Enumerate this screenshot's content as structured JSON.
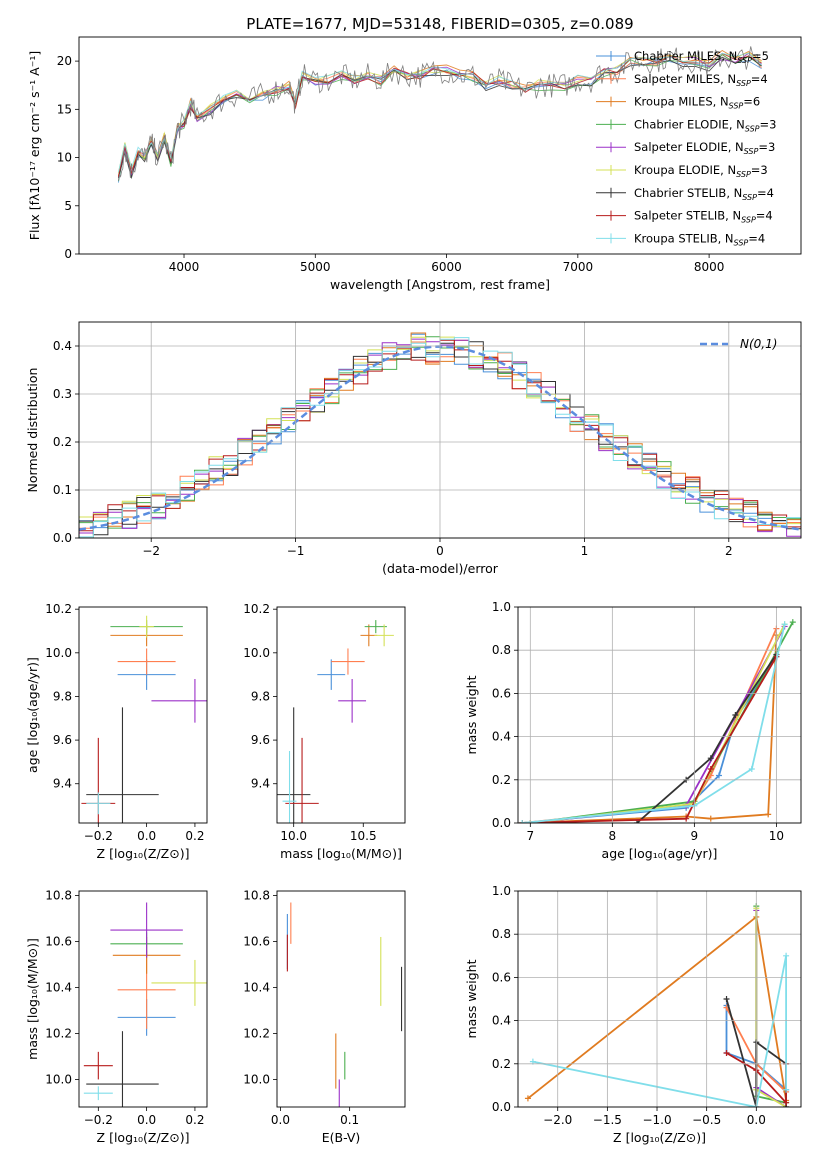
{
  "figure": {
    "title": "PLATE=1677, MJD=53148, FIBERID=0305, z=0.089"
  },
  "series": [
    {
      "name": "Chabrier MILES, N",
      "sub": "SSP",
      "suffix": "=5",
      "color": "#4a90d9"
    },
    {
      "name": "Salpeter MILES, N",
      "sub": "SSP",
      "suffix": "=4",
      "color": "#ff7f50"
    },
    {
      "name": "Kroupa MILES, N",
      "sub": "SSP",
      "suffix": "=6",
      "color": "#e07b20"
    },
    {
      "name": "Chabrier ELODIE, N",
      "sub": "SSP",
      "suffix": "=3",
      "color": "#4caf50"
    },
    {
      "name": "Salpeter ELODIE, N",
      "sub": "SSP",
      "suffix": "=3",
      "color": "#9b30c8"
    },
    {
      "name": "Kroupa ELODIE, N",
      "sub": "SSP",
      "suffix": "=3",
      "color": "#d4e157"
    },
    {
      "name": "Chabrier STELIB, N",
      "sub": "SSP",
      "suffix": "=4",
      "color": "#333333"
    },
    {
      "name": "Salpeter STELIB, N",
      "sub": "SSP",
      "suffix": "=4",
      "color": "#b71c1c"
    },
    {
      "name": "Kroupa STELIB, N",
      "sub": "SSP",
      "suffix": "=4",
      "color": "#80deea"
    }
  ],
  "chart_data": [
    {
      "id": "spectrum",
      "type": "line",
      "xlabel": "wavelength [Angstrom, rest frame]",
      "ylabel": "Flux [fλ10⁻¹⁷ erg cm⁻² s⁻¹ A⁻¹]",
      "xlim": [
        3200,
        8700
      ],
      "ylim": [
        0,
        22.5
      ],
      "xticks": [
        4000,
        5000,
        6000,
        7000,
        8000
      ],
      "yticks": [
        0,
        5,
        10,
        15,
        20
      ],
      "data_series": {
        "name": "data",
        "color": "#7f7f7f",
        "x": [
          3500,
          3550,
          3600,
          3650,
          3700,
          3750,
          3800,
          3850,
          3900,
          3950,
          4000,
          4050,
          4100,
          4200,
          4300,
          4400,
          4500,
          4600,
          4700,
          4800,
          4850,
          4900,
          5000,
          5100,
          5200,
          5300,
          5400,
          5500,
          5600,
          5700,
          5800,
          5900,
          6000,
          6100,
          6200,
          6300,
          6400,
          6500,
          6600,
          6700,
          6800,
          6900,
          7000,
          7100,
          7200,
          7300,
          7400,
          7500,
          7600,
          7700,
          7800,
          7900,
          8000,
          8100,
          8200,
          8300,
          8400
        ],
        "y": [
          8.0,
          11.0,
          8.5,
          10.5,
          10.0,
          11.5,
          10.0,
          12.0,
          9.5,
          13.0,
          13.5,
          15.5,
          14.0,
          15.0,
          16.0,
          16.5,
          16.0,
          16.5,
          17.0,
          17.5,
          15.5,
          18.5,
          18.0,
          18.0,
          18.5,
          18.0,
          18.5,
          18.0,
          19.0,
          18.5,
          18.5,
          19.0,
          19.0,
          18.5,
          18.5,
          17.5,
          18.0,
          17.5,
          17.0,
          17.5,
          17.5,
          17.5,
          18.0,
          18.0,
          19.0,
          19.0,
          20.0,
          20.0,
          20.0,
          20.5,
          20.0,
          20.0,
          19.5,
          20.5,
          20.0,
          20.5,
          19.5
        ]
      }
    },
    {
      "id": "residuals",
      "type": "step",
      "xlabel": "(data-model)/error",
      "ylabel": "Normed distribution",
      "xlim": [
        -2.5,
        2.5
      ],
      "ylim": [
        0,
        0.45
      ],
      "xticks": [
        -2,
        -1,
        0,
        1,
        2
      ],
      "yticks": [
        0.0,
        0.1,
        0.2,
        0.3,
        0.4
      ],
      "grid": true,
      "legend": "top-right",
      "reference": {
        "name": "N(0,1)",
        "color": "#5b8ddf",
        "mean": 0,
        "sigma": 1
      },
      "bin_centers": [
        -2.45,
        -2.35,
        -2.25,
        -2.15,
        -2.05,
        -1.95,
        -1.85,
        -1.75,
        -1.65,
        -1.55,
        -1.45,
        -1.35,
        -1.25,
        -1.15,
        -1.05,
        -0.95,
        -0.85,
        -0.75,
        -0.65,
        -0.55,
        -0.45,
        -0.35,
        -0.25,
        -0.15,
        -0.05,
        0.05,
        0.15,
        0.25,
        0.35,
        0.45,
        0.55,
        0.65,
        0.75,
        0.85,
        0.95,
        1.05,
        1.15,
        1.25,
        1.35,
        1.45,
        1.55,
        1.65,
        1.75,
        1.85,
        1.95,
        2.05,
        2.15,
        2.25,
        2.35,
        2.45
      ],
      "base_values": [
        0.02,
        0.03,
        0.04,
        0.05,
        0.06,
        0.07,
        0.08,
        0.1,
        0.12,
        0.14,
        0.16,
        0.18,
        0.2,
        0.22,
        0.25,
        0.27,
        0.29,
        0.31,
        0.33,
        0.35,
        0.37,
        0.38,
        0.39,
        0.4,
        0.39,
        0.39,
        0.39,
        0.38,
        0.37,
        0.36,
        0.34,
        0.32,
        0.3,
        0.28,
        0.25,
        0.23,
        0.21,
        0.19,
        0.17,
        0.15,
        0.13,
        0.11,
        0.1,
        0.08,
        0.07,
        0.06,
        0.05,
        0.04,
        0.03,
        0.03
      ]
    },
    {
      "id": "age-vs-Z",
      "type": "errorbar",
      "xlabel": "Z [log₁₀(Z/Z⊙)]",
      "ylabel": "age  [log₁₀(age/yr)]",
      "xlim": [
        -0.28,
        0.25
      ],
      "ylim": [
        9.22,
        10.21
      ],
      "xticks": [
        -0.2,
        0.0,
        0.2
      ],
      "yticks": [
        9.4,
        9.6,
        9.8,
        10.0,
        10.2
      ],
      "points": [
        {
          "x": 0.0,
          "y": 9.9,
          "xerr": 0.12,
          "yerr": 0.07
        },
        {
          "x": 0.0,
          "y": 9.96,
          "xerr": 0.12,
          "yerr": 0.06
        },
        {
          "x": 0.0,
          "y": 10.08,
          "xerr": 0.15,
          "yerr": 0.05
        },
        {
          "x": 0.0,
          "y": 10.12,
          "xerr": 0.15,
          "yerr": 0.03
        },
        {
          "x": 0.2,
          "y": 9.78,
          "xerr": 0.18,
          "yerr": 0.1
        },
        {
          "x": 0.0,
          "y": 10.12,
          "xerr": 0.03,
          "yerr": 0.05
        },
        {
          "x": -0.1,
          "y": 9.35,
          "xerr": 0.15,
          "yerr": 0.4
        },
        {
          "x": -0.2,
          "y": 9.31,
          "xerr": 0.07,
          "yerr": 0.3
        },
        {
          "x": -0.2,
          "y": 9.31,
          "xerr": 0.05,
          "yerr": 0.05
        }
      ]
    },
    {
      "id": "age-vs-mass",
      "type": "errorbar",
      "xlabel": "mass [log₁₀(M/M⊙)]",
      "ylabel": "",
      "xlim": [
        9.88,
        10.8
      ],
      "ylim": [
        9.22,
        10.21
      ],
      "xticks": [
        10.0,
        10.5
      ],
      "yticks": [
        9.4,
        9.6,
        9.8,
        10.0,
        10.2
      ],
      "points": [
        {
          "x": 10.27,
          "y": 9.9,
          "xerr": 0.1,
          "yerr": 0.07
        },
        {
          "x": 10.39,
          "y": 9.96,
          "xerr": 0.12,
          "yerr": 0.06
        },
        {
          "x": 10.54,
          "y": 10.08,
          "xerr": 0.06,
          "yerr": 0.05
        },
        {
          "x": 10.59,
          "y": 10.12,
          "xerr": 0.08,
          "yerr": 0.03
        },
        {
          "x": 10.42,
          "y": 9.78,
          "xerr": 0.1,
          "yerr": 0.1
        },
        {
          "x": 10.65,
          "y": 10.08,
          "xerr": 0.07,
          "yerr": 0.05
        },
        {
          "x": 10.0,
          "y": 9.35,
          "xerr": 0.12,
          "yerr": 0.4
        },
        {
          "x": 10.06,
          "y": 9.31,
          "xerr": 0.12,
          "yerr": 0.3
        },
        {
          "x": 9.97,
          "y": 9.32,
          "xerr": 0.05,
          "yerr": 0.23
        }
      ]
    },
    {
      "id": "weight-vs-age",
      "type": "line",
      "xlabel": "age  [log₁₀(age/yr)]",
      "ylabel": "mass weight",
      "xlim": [
        6.85,
        10.3
      ],
      "ylim": [
        0,
        1.0
      ],
      "xticks": [
        7,
        8,
        9,
        10
      ],
      "yticks": [
        0.0,
        0.2,
        0.4,
        0.6,
        0.8,
        1.0
      ],
      "grid": true,
      "lines": [
        {
          "x": [
            6.9,
            8.9,
            9.3,
            9.5,
            10.0
          ],
          "y": [
            0.0,
            0.07,
            0.22,
            0.48,
            0.77
          ]
        },
        {
          "x": [
            6.9,
            8.9,
            9.0,
            9.2,
            10.0
          ],
          "y": [
            0.0,
            0.08,
            0.1,
            0.22,
            0.9
          ]
        },
        {
          "x": [
            6.9,
            8.9,
            9.2,
            9.9,
            10.0
          ],
          "y": [
            0.0,
            0.03,
            0.02,
            0.04,
            0.87
          ]
        },
        {
          "x": [
            7.0,
            9.0,
            10.2
          ],
          "y": [
            0.0,
            0.1,
            0.93
          ]
        },
        {
          "x": [
            7.0,
            8.9,
            10.1
          ],
          "y": [
            0.0,
            0.08,
            0.91
          ]
        },
        {
          "x": [
            7.0,
            9.0,
            10.1
          ],
          "y": [
            0.0,
            0.09,
            0.92
          ]
        },
        {
          "x": [
            8.3,
            8.9,
            9.2,
            9.5,
            10.0
          ],
          "y": [
            0.0,
            0.2,
            0.3,
            0.5,
            0.78
          ]
        },
        {
          "x": [
            6.9,
            8.9,
            9.2,
            10.0
          ],
          "y": [
            0.0,
            0.02,
            0.25,
            0.77
          ]
        },
        {
          "x": [
            6.9,
            9.0,
            9.7,
            10.1
          ],
          "y": [
            0.0,
            0.08,
            0.25,
            0.92
          ]
        }
      ]
    },
    {
      "id": "mass-vs-Z",
      "type": "errorbar",
      "xlabel": "Z [log₁₀(Z/Z⊙)]",
      "ylabel": "mass [log₁₀(M/M⊙)]",
      "xlim": [
        -0.28,
        0.25
      ],
      "ylim": [
        9.88,
        10.82
      ],
      "xticks": [
        -0.2,
        0.0,
        0.2
      ],
      "yticks": [
        10.0,
        10.2,
        10.4,
        10.6,
        10.8
      ],
      "points": [
        {
          "x": 0.0,
          "y": 10.27,
          "xerr": 0.12,
          "yerr": 0.08
        },
        {
          "x": 0.0,
          "y": 10.39,
          "xerr": 0.12,
          "yerr": 0.17
        },
        {
          "x": 0.0,
          "y": 10.54,
          "xerr": 0.14,
          "yerr": 0.08
        },
        {
          "x": 0.0,
          "y": 10.59,
          "xerr": 0.15,
          "yerr": 0.05
        },
        {
          "x": 0.0,
          "y": 10.65,
          "xerr": 0.15,
          "yerr": 0.12
        },
        {
          "x": 0.2,
          "y": 10.42,
          "xerr": 0.18,
          "yerr": 0.1
        },
        {
          "x": -0.1,
          "y": 9.98,
          "xerr": 0.15,
          "yerr": 0.23
        },
        {
          "x": -0.2,
          "y": 10.06,
          "xerr": 0.06,
          "yerr": 0.06
        },
        {
          "x": -0.2,
          "y": 9.94,
          "xerr": 0.06,
          "yerr": 0.03
        }
      ]
    },
    {
      "id": "mass-vs-EBV",
      "type": "errorbar",
      "xlabel": "E(B-V)",
      "ylabel": "",
      "xlim": [
        -0.005,
        0.18
      ],
      "ylim": [
        9.88,
        10.82
      ],
      "xticks": [
        0.0,
        0.1
      ],
      "yticks": [
        10.0,
        10.2,
        10.4,
        10.6,
        10.8
      ],
      "points": [
        {
          "x": 0.01,
          "y": 10.6,
          "yerr": 0.12
        },
        {
          "x": 0.015,
          "y": 10.68,
          "yerr": 0.09
        },
        {
          "x": 0.08,
          "y": 10.08,
          "yerr": 0.12
        },
        {
          "x": 0.093,
          "y": 10.06,
          "yerr": 0.06
        },
        {
          "x": 0.085,
          "y": 9.94,
          "yerr": 0.06
        },
        {
          "x": 0.145,
          "y": 10.47,
          "yerr": 0.15
        },
        {
          "x": 0.175,
          "y": 10.35,
          "yerr": 0.14
        },
        {
          "x": 0.01,
          "y": 10.55,
          "yerr": 0.08
        }
      ]
    },
    {
      "id": "weight-vs-Z",
      "type": "line",
      "xlabel": "Z [log₁₀(Z/Z⊙)]",
      "ylabel": "mass weight",
      "xlim": [
        -2.4,
        0.45
      ],
      "ylim": [
        0,
        1.0
      ],
      "xticks": [
        -2.0,
        -1.5,
        -1.0,
        -0.5,
        0.0
      ],
      "yticks": [
        0.0,
        0.2,
        0.4,
        0.6,
        0.8,
        1.0
      ],
      "grid": true,
      "lines": [
        {
          "x": [
            -0.3,
            -0.3,
            0.0,
            0.3
          ],
          "y": [
            0.47,
            0.25,
            0.2,
            0.08
          ]
        },
        {
          "x": [
            -0.3,
            0.0,
            0.3
          ],
          "y": [
            0.46,
            0.2,
            0.07
          ]
        },
        {
          "x": [
            -2.3,
            0.0,
            0.3,
            0.3
          ],
          "y": [
            0.04,
            0.88,
            0.03,
            0.2
          ]
        },
        {
          "x": [
            0.0,
            0.0,
            0.3
          ],
          "y": [
            0.93,
            0.05,
            0.02
          ]
        },
        {
          "x": [
            0.0,
            0.0,
            0.3
          ],
          "y": [
            0.91,
            0.09,
            0.0
          ]
        },
        {
          "x": [
            0.0,
            0.0,
            0.3
          ],
          "y": [
            0.92,
            0.08,
            0.0
          ]
        },
        {
          "x": [
            -0.3,
            0.0,
            0.0,
            0.3,
            0.3
          ],
          "y": [
            0.5,
            0.0,
            0.3,
            0.2,
            0.0
          ]
        },
        {
          "x": [
            -0.3,
            0.0,
            0.3,
            0.3
          ],
          "y": [
            0.25,
            0.17,
            0.02,
            0.2
          ]
        },
        {
          "x": [
            -2.25,
            0.0,
            0.3,
            0.3
          ],
          "y": [
            0.21,
            0.0,
            0.7,
            0.08
          ]
        }
      ]
    }
  ]
}
